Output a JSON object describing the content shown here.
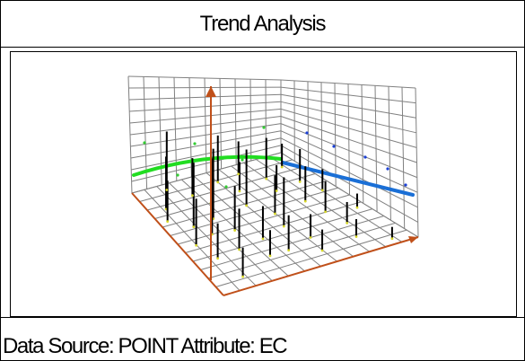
{
  "window": {
    "title": "Trend Analysis",
    "data_source": "Data Source: POINT Attribute: EC"
  },
  "colors": {
    "grid": "#808080",
    "floor_axes": "#c0501a",
    "z_axis": "#c0501a",
    "sticks": "#000000",
    "trend_xz": "#22dd22",
    "trend_yz": "#1a6fd6",
    "projection_green": "#33cc33",
    "projection_blue": "#1a3fd6"
  },
  "icons": {
    "z_axis_arrow": "arrow-up-icon",
    "x_axis_arrow": "arrow-right-icon"
  },
  "chart_data": {
    "type": "scatter",
    "view": "3d-trend-analysis",
    "title": "",
    "xlabel": "",
    "ylabel": "",
    "zlabel": "",
    "grid": true,
    "legend": "none",
    "trend_projections": [
      {
        "plane": "x-z",
        "shape": "second-order, arched"
      },
      {
        "plane": "y-z",
        "shape": "linear, decreasing"
      }
    ]
  }
}
